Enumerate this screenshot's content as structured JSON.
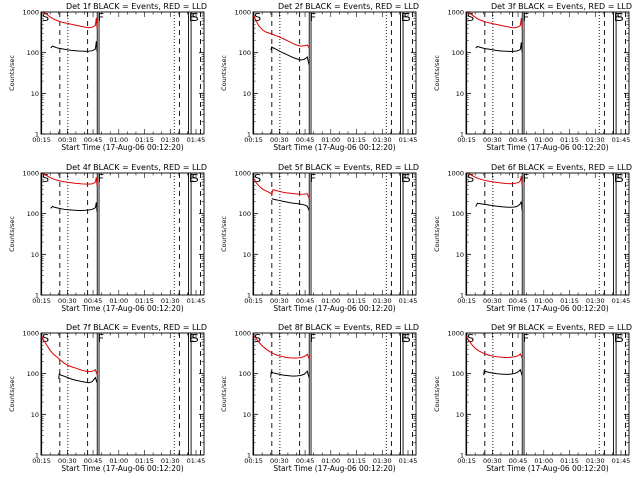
{
  "layout": {
    "rows": 3,
    "cols": 3
  },
  "common": {
    "ylabel": "Counts/sec",
    "xlabel": "Start Time (17-Aug-06 00:12:20)",
    "xticks": [
      "00:15",
      "00:30",
      "00:45",
      "01:00",
      "01:15",
      "01:30",
      "01:45"
    ],
    "yticks": [
      "1",
      "10",
      "100",
      "1000"
    ],
    "markers": {
      "start": "S",
      "finish": "F",
      "end": "E",
      "second_start": "S"
    },
    "colors": {
      "events": "#000000",
      "lld": "#e00000"
    }
  },
  "chart_data": [
    {
      "type": "line",
      "title": "Det 1f BLACK = Events, RED = LLD",
      "xlim_min": [
        2.33,
        97.33
      ],
      "ylim": [
        1,
        1000
      ],
      "yscale": "log",
      "markers_min": {
        "S": 2.7,
        "F": 35.1,
        "E": 88.3,
        "S2": 89.8
      },
      "dashed_min": [
        13.3,
        29.5,
        83.0,
        95.3
      ],
      "dotted_min": [
        18.0,
        80.0
      ],
      "series": [
        {
          "name": "Events",
          "x": [
            8,
            9,
            10,
            12,
            14,
            16,
            18,
            20,
            22,
            24,
            26,
            28,
            30,
            32,
            33,
            34,
            34.6,
            35.0
          ],
          "y": [
            130,
            145,
            140,
            130,
            126,
            121,
            117,
            114,
            112,
            110,
            109,
            108,
            108,
            111,
            116,
            122,
            190,
            105
          ]
        },
        {
          "name": "LLD",
          "x": [
            2.5,
            4,
            6,
            8,
            10,
            12,
            14,
            16,
            18,
            20,
            22,
            24,
            26,
            28,
            30,
            32,
            33,
            34,
            34.6,
            35.0
          ],
          "y": [
            1000,
            980,
            850,
            740,
            660,
            610,
            570,
            545,
            520,
            500,
            480,
            460,
            440,
            425,
            410,
            420,
            440,
            470,
            720,
            390
          ]
        }
      ]
    },
    {
      "type": "line",
      "title": "Det 2f BLACK = Events, RED = LLD",
      "xlim_min": [
        2.33,
        97.33
      ],
      "ylim": [
        1,
        1000
      ],
      "yscale": "log",
      "markers_min": {
        "S": 2.7,
        "F": 35.1,
        "E": 88.3,
        "S2": 89.8
      },
      "dashed_min": [
        13.3,
        29.5,
        83.0,
        95.3
      ],
      "dotted_min": [
        18.0,
        80.0
      ],
      "series": [
        {
          "name": "Events",
          "x": [
            12.8,
            13.2,
            14,
            16,
            18,
            20,
            22,
            24,
            26,
            28,
            30,
            32,
            33,
            34,
            35.0
          ],
          "y": [
            115,
            138,
            132,
            120,
            108,
            98,
            90,
            82,
            75,
            70,
            66,
            68,
            72,
            78,
            50
          ]
        },
        {
          "name": "LLD",
          "x": [
            2.5,
            3.5,
            5,
            6,
            8,
            10,
            12,
            14,
            16,
            18,
            20,
            22,
            24,
            26,
            28,
            30,
            32,
            33,
            34,
            35.0
          ],
          "y": [
            850,
            700,
            520,
            440,
            360,
            320,
            300,
            280,
            260,
            240,
            220,
            200,
            182,
            165,
            152,
            145,
            148,
            150,
            155,
            130
          ]
        }
      ]
    },
    {
      "type": "line",
      "title": "Det 3f BLACK = Events, RED = LLD",
      "xlim_min": [
        2.33,
        97.33
      ],
      "ylim": [
        1,
        1000
      ],
      "yscale": "log",
      "markers_min": {
        "S": 2.7,
        "F": 35.1,
        "E": 88.3,
        "S2": 89.8
      },
      "dashed_min": [
        13.3,
        29.5,
        83.0,
        95.3
      ],
      "dotted_min": [
        18.0,
        80.0
      ],
      "series": [
        {
          "name": "Events",
          "x": [
            8,
            9,
            10,
            12,
            14,
            16,
            18,
            20,
            22,
            24,
            26,
            28,
            30,
            32,
            33,
            34,
            34.6,
            35.0
          ],
          "y": [
            130,
            142,
            138,
            130,
            125,
            121,
            117,
            113,
            111,
            109,
            108,
            107,
            108,
            110,
            114,
            120,
            180,
            102
          ]
        },
        {
          "name": "LLD",
          "x": [
            2.5,
            4,
            6,
            8,
            10,
            12,
            14,
            16,
            18,
            20,
            22,
            24,
            26,
            28,
            30,
            32,
            33,
            34,
            34.6,
            35.0
          ],
          "y": [
            1000,
            960,
            840,
            730,
            650,
            605,
            565,
            540,
            515,
            495,
            475,
            455,
            438,
            422,
            408,
            418,
            438,
            468,
            710,
            385
          ]
        }
      ]
    },
    {
      "type": "line",
      "title": "Det 4f BLACK = Events, RED = LLD",
      "xlim_min": [
        2.33,
        97.33
      ],
      "ylim": [
        1,
        1000
      ],
      "yscale": "log",
      "markers_min": {
        "S": 2.7,
        "F": 35.1,
        "E": 88.3,
        "S2": 89.8
      },
      "dashed_min": [
        13.3,
        29.5,
        83.0,
        95.3
      ],
      "dotted_min": [
        18.0,
        80.0
      ],
      "series": [
        {
          "name": "Events",
          "x": [
            8,
            9,
            10,
            12,
            14,
            16,
            18,
            20,
            22,
            24,
            26,
            28,
            30,
            32,
            33,
            34,
            34.6,
            35.0
          ],
          "y": [
            135,
            150,
            145,
            138,
            132,
            128,
            125,
            123,
            121,
            120,
            120,
            121,
            123,
            127,
            132,
            140,
            190,
            110
          ]
        },
        {
          "name": "LLD",
          "x": [
            2.5,
            4,
            6,
            8,
            10,
            12,
            14,
            16,
            18,
            20,
            22,
            24,
            26,
            28,
            30,
            32,
            33,
            34,
            34.6,
            35.0
          ],
          "y": [
            1000,
            950,
            840,
            760,
            700,
            660,
            630,
            610,
            590,
            575,
            560,
            550,
            540,
            535,
            532,
            540,
            560,
            600,
            780,
            470
          ]
        }
      ]
    },
    {
      "type": "line",
      "title": "Det 5f BLACK = Events, RED = LLD",
      "xlim_min": [
        2.33,
        97.33
      ],
      "ylim": [
        1,
        1000
      ],
      "yscale": "log",
      "markers_min": {
        "S": 2.7,
        "F": 35.1,
        "E": 88.3,
        "S2": 89.8
      },
      "dashed_min": [
        13.3,
        29.5,
        83.0,
        95.3
      ],
      "dotted_min": [
        18.0,
        80.0
      ],
      "series": [
        {
          "name": "Events",
          "x": [
            13.3,
            14,
            16,
            18,
            20,
            22,
            24,
            26,
            28,
            30,
            32,
            33,
            34,
            35.0
          ],
          "y": [
            235,
            228,
            218,
            210,
            200,
            193,
            186,
            180,
            176,
            172,
            165,
            160,
            152,
            120
          ]
        },
        {
          "name": "LLD",
          "x": [
            2.5,
            4,
            6,
            8,
            10,
            12,
            13.3,
            14,
            16,
            18,
            20,
            22,
            24,
            26,
            28,
            30,
            32,
            33,
            34,
            35.0
          ],
          "y": [
            700,
            590,
            470,
            400,
            360,
            330,
            300,
            390,
            370,
            350,
            335,
            325,
            318,
            310,
            305,
            300,
            302,
            305,
            310,
            240
          ]
        }
      ]
    },
    {
      "type": "line",
      "title": "Det 6f BLACK = Events, RED = LLD",
      "xlim_min": [
        2.33,
        97.33
      ],
      "ylim": [
        1,
        1000
      ],
      "yscale": "log",
      "markers_min": {
        "S": 2.7,
        "F": 35.1,
        "E": 88.3,
        "S2": 89.8
      },
      "dashed_min": [
        13.3,
        29.5,
        83.0,
        95.3
      ],
      "dotted_min": [
        18.0,
        80.0
      ],
      "series": [
        {
          "name": "Events",
          "x": [
            8,
            9,
            10,
            12,
            14,
            16,
            18,
            20,
            22,
            24,
            26,
            28,
            30,
            32,
            33,
            34,
            34.6,
            35.0
          ],
          "y": [
            150,
            180,
            178,
            172,
            168,
            162,
            158,
            153,
            150,
            147,
            145,
            144,
            145,
            150,
            160,
            175,
            200,
            120
          ]
        },
        {
          "name": "LLD",
          "x": [
            2.5,
            4,
            6,
            8,
            10,
            12,
            14,
            16,
            18,
            20,
            22,
            24,
            26,
            28,
            30,
            32,
            33,
            34,
            34.6,
            35.0
          ],
          "y": [
            1000,
            970,
            860,
            780,
            720,
            680,
            650,
            625,
            605,
            590,
            575,
            560,
            550,
            545,
            550,
            570,
            590,
            640,
            850,
            480
          ]
        }
      ]
    },
    {
      "type": "line",
      "title": "Det 7f BLACK = Events, RED = LLD",
      "xlim_min": [
        2.33,
        97.33
      ],
      "ylim": [
        1,
        1000
      ],
      "yscale": "log",
      "markers_min": {
        "S": 2.7,
        "F": 35.1,
        "E": 88.3,
        "S2": 89.8
      },
      "dashed_min": [
        13.3,
        29.5,
        83.0,
        95.3
      ],
      "dotted_min": [
        18.0,
        80.0
      ],
      "series": [
        {
          "name": "Events",
          "x": [
            12.6,
            13.0,
            14,
            16,
            18,
            20,
            22,
            24,
            26,
            28,
            30,
            32,
            33,
            34,
            35.0
          ],
          "y": [
            75,
            98,
            92,
            86,
            80,
            74,
            70,
            67,
            64,
            62,
            60,
            63,
            70,
            80,
            60
          ]
        },
        {
          "name": "LLD",
          "x": [
            2.5,
            4,
            6,
            8,
            10,
            12,
            14,
            16,
            18,
            20,
            22,
            24,
            26,
            28,
            30,
            32,
            33,
            34,
            35.0
          ],
          "y": [
            850,
            660,
            480,
            360,
            290,
            250,
            210,
            180,
            160,
            148,
            140,
            130,
            122,
            116,
            112,
            114,
            118,
            125,
            95
          ]
        }
      ]
    },
    {
      "type": "line",
      "title": "Det 8f BLACK = Events, RED = LLD",
      "xlim_min": [
        2.33,
        97.33
      ],
      "ylim": [
        1,
        1000
      ],
      "yscale": "log",
      "markers_min": {
        "S": 2.7,
        "F": 35.1,
        "E": 88.3,
        "S2": 89.8
      },
      "dashed_min": [
        13.3,
        29.5,
        83.0,
        95.3
      ],
      "dotted_min": [
        18.0,
        80.0
      ],
      "series": [
        {
          "name": "Events",
          "x": [
            12.6,
            13.0,
            14,
            16,
            18,
            20,
            22,
            24,
            26,
            28,
            30,
            32,
            33,
            34,
            35.0
          ],
          "y": [
            80,
            112,
            105,
            100,
            96,
            92,
            90,
            88,
            87,
            88,
            90,
            96,
            104,
            115,
            80
          ]
        },
        {
          "name": "LLD",
          "x": [
            2.5,
            4,
            6,
            8,
            10,
            12,
            14,
            16,
            18,
            20,
            22,
            24,
            26,
            28,
            30,
            32,
            33,
            34,
            35.0
          ],
          "y": [
            900,
            740,
            580,
            470,
            400,
            350,
            315,
            290,
            272,
            260,
            250,
            245,
            242,
            242,
            248,
            262,
            275,
            300,
            230
          ]
        }
      ]
    },
    {
      "type": "line",
      "title": "Det 9f BLACK = Events, RED = LLD",
      "xlim_min": [
        2.33,
        97.33
      ],
      "ylim": [
        1,
        1000
      ],
      "yscale": "log",
      "markers_min": {
        "S": 2.7,
        "F": 35.1,
        "E": 88.3,
        "S2": 89.8
      },
      "dashed_min": [
        13.3,
        29.5,
        83.0,
        95.3
      ],
      "dotted_min": [
        18.0,
        80.0
      ],
      "series": [
        {
          "name": "Events",
          "x": [
            12.6,
            13.0,
            14,
            16,
            18,
            20,
            22,
            24,
            26,
            28,
            30,
            32,
            33,
            34,
            35.0
          ],
          "y": [
            92,
            118,
            112,
            107,
            103,
            100,
            98,
            97,
            96,
            97,
            100,
            106,
            114,
            125,
            90
          ]
        },
        {
          "name": "LLD",
          "x": [
            2.5,
            4,
            6,
            8,
            10,
            12,
            14,
            16,
            18,
            20,
            22,
            24,
            26,
            28,
            30,
            32,
            33,
            34,
            35.0
          ],
          "y": [
            820,
            650,
            500,
            410,
            360,
            325,
            300,
            282,
            270,
            262,
            256,
            252,
            250,
            252,
            258,
            270,
            282,
            305,
            240
          ]
        }
      ]
    }
  ]
}
